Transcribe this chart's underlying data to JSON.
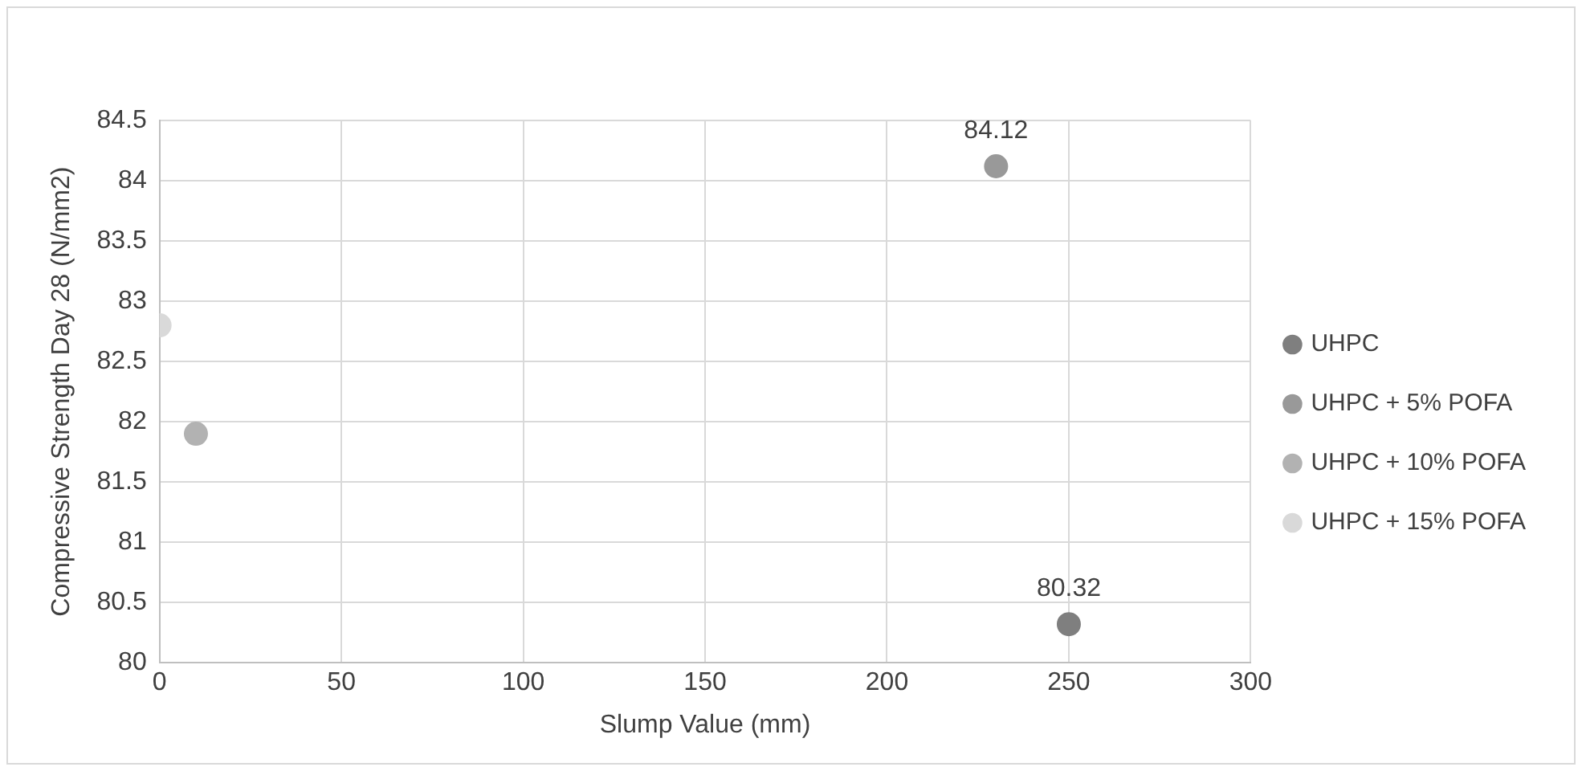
{
  "chart_data": {
    "type": "scatter",
    "xlabel": "Slump Value (mm)",
    "ylabel": "Compressive Strength Day 28 (N/mm2)",
    "xlim": [
      0,
      300
    ],
    "xticks": [
      0,
      50,
      100,
      150,
      200,
      250,
      300
    ],
    "ylim": [
      80,
      84.5
    ],
    "yticks": [
      80,
      80.5,
      81,
      81.5,
      82,
      82.5,
      83,
      83.5,
      84,
      84.5
    ],
    "grid": true,
    "legend": "right",
    "marker": "circle",
    "series": [
      {
        "name": "UHPC",
        "color": "#7f7f7f",
        "x": [
          250
        ],
        "values": [
          80.32
        ],
        "value_labels": [
          "80.32"
        ]
      },
      {
        "name": "UHPC + 5% POFA",
        "color": "#999999",
        "x": [
          230
        ],
        "values": [
          84.12
        ],
        "value_labels": [
          "84.12"
        ]
      },
      {
        "name": "UHPC + 10% POFA",
        "color": "#b2b2b2",
        "x": [
          10
        ],
        "values": [
          81.9
        ],
        "value_labels": [
          null
        ]
      },
      {
        "name": "UHPC + 15% POFA",
        "color": "#d9d9d9",
        "x": [
          0
        ],
        "values": [
          82.8
        ],
        "value_labels": [
          null
        ]
      }
    ]
  }
}
